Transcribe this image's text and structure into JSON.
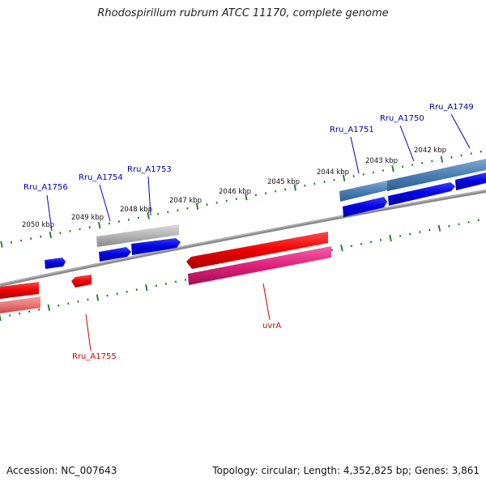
{
  "title": "Rhodospirillum rubrum ATCC 11170, complete genome",
  "footer": {
    "accession": "Accession: NC_007643",
    "topology": "Topology: circular; Length: 4,352,825 bp; Genes: 3,861"
  },
  "colors": {
    "backbone": "#808080",
    "ticks": "#1a7a1a",
    "forward_gene": "#0000ee",
    "forward_gene_light": "#4a7fb5",
    "forward_grey": "#b0b0b0",
    "reverse_gene": "#ee0000",
    "reverse_gene_light": "#f08080",
    "reverse_magenta": "#e0207a",
    "forward_label": "#0000aa",
    "reverse_label": "#cc0000"
  },
  "scale_labels": [
    "2050 kbp",
    "2049 kbp",
    "2048 kbp",
    "2047 kbp",
    "2046 kbp",
    "2045 kbp",
    "2044 kbp",
    "2043 kbp",
    "2042 kbp"
  ],
  "forward_labels": [
    "Rru_A1756",
    "Rru_A1754",
    "Rru_A1753",
    "Rru_A1751",
    "Rru_A1750",
    "Rru_A1749"
  ],
  "reverse_labels": [
    "Rru_A1755",
    "uvrA"
  ]
}
